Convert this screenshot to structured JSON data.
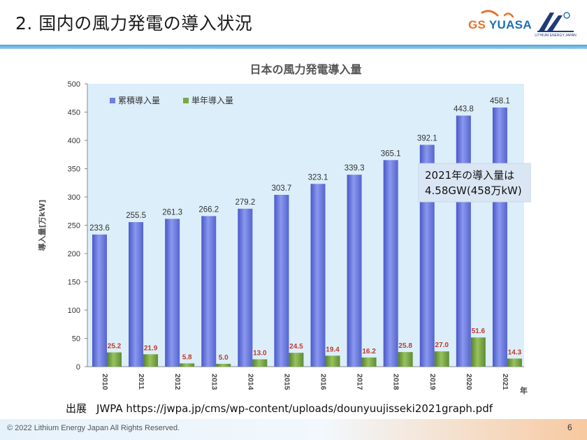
{
  "slide": {
    "title": "2. 国内の風力発電の導入状況",
    "source_label": "出展",
    "source_text": "JWPA  https://jwpa.jp/cms/wp-content/uploads/dounyuujisseki2021graph.pdf",
    "copyright": "© 2022 Lithium Energy Japan All Rights Reserved.",
    "page_number": "6"
  },
  "logos": {
    "gs_yuasa": {
      "text_g": "GS",
      "text_rest": "YUASA"
    },
    "lej": {
      "caption": "LITHIUM ENERGY JAPAN",
      "small": "Energy, Next"
    }
  },
  "chart_data": {
    "type": "bar",
    "title": "日本の風力発電導入量",
    "ylabel": "導入量[万kW]",
    "x_unit": "年",
    "categories": [
      "2010",
      "2011",
      "2012",
      "2013",
      "2014",
      "2015",
      "2016",
      "2017",
      "2018",
      "2019",
      "2020",
      "2021"
    ],
    "series": [
      {
        "name": "累積導入量",
        "values": [
          233.6,
          255.5,
          261.3,
          266.2,
          279.2,
          303.7,
          323.1,
          339.3,
          365.1,
          392.1,
          443.8,
          458.1
        ],
        "labels": [
          "233.6",
          "255.5",
          "261.3",
          "266.2",
          "279.2",
          "303.7",
          "323.1",
          "339.3",
          "365.1",
          "392.1",
          "443.8",
          "458.1"
        ],
        "color": "#6f7fe0",
        "label_color": "#333333"
      },
      {
        "name": "単年導入量",
        "values": [
          25.2,
          21.9,
          5.8,
          5.0,
          13.0,
          24.5,
          19.4,
          16.2,
          25.8,
          27.0,
          51.6,
          14.3
        ],
        "labels": [
          "25.2",
          "21.9",
          "5.8",
          "5.0",
          "13.0",
          "24.5",
          "19.4",
          "16.2",
          "25.8",
          "27.0",
          "51.6",
          "14.3"
        ],
        "color": "#7aa845",
        "label_color": "#c0392b"
      }
    ],
    "ylim": [
      0,
      500
    ],
    "yticks": [
      "0",
      "50",
      "100",
      "150",
      "200",
      "250",
      "300",
      "350",
      "400",
      "450",
      "500"
    ],
    "grid": false,
    "legend_position": "top-left",
    "annotation": {
      "line1": "2021年の導入量は",
      "line2": "4.58GW(458万kW)"
    },
    "colors": {
      "plot_bg": "#dceefa",
      "axis": "#888888"
    }
  }
}
